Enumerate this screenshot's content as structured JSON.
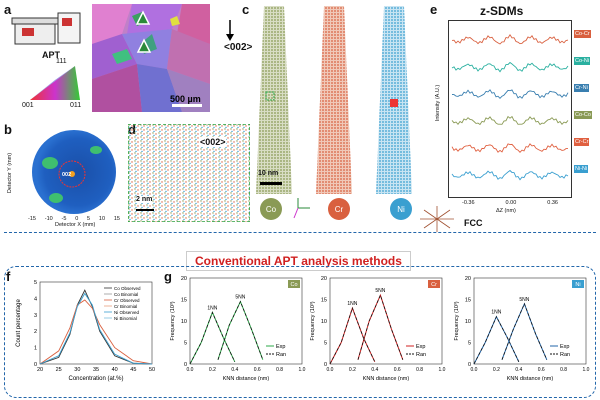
{
  "panels": {
    "a": {
      "label": "a",
      "apt_title": "APT",
      "triangle_top": "111",
      "triangle_left": "001",
      "triangle_right": "011",
      "scalebar": "500 µm"
    },
    "b": {
      "label": "b",
      "pole": "002",
      "ylabel": "Detector Y (mm)",
      "xlabel": "Detector X (mm)",
      "ticks": [
        "-15",
        "-10",
        "-5",
        "0",
        "5",
        "10",
        "15"
      ]
    },
    "c": {
      "label": "c",
      "direction": "<002>",
      "scalebar": "10 nm",
      "elements": [
        "Co",
        "Cr",
        "Ni"
      ],
      "axes": [
        "y",
        "x",
        "z"
      ]
    },
    "d": {
      "label": "d",
      "direction": "<002>",
      "scalebar": "2 nm"
    },
    "e": {
      "label": "e",
      "title": "z-SDMs",
      "ylabel": "Intensity (A.U.)",
      "xlabel": "ΔZ (nm)",
      "xticks": [
        "-0.36",
        "0.00",
        "0.36"
      ],
      "pairs": [
        "Co-Cr",
        "Co-Ni",
        "Cr-Ni",
        "Co-Co",
        "Cr-Cr",
        "Ni-Ni"
      ],
      "structure": "FCC"
    },
    "banner": "Conventional APT analysis methods",
    "f": {
      "label": "f",
      "ylabel": "Count percentage",
      "xlabel": "Concentration (at.%)",
      "yticks": [
        "0",
        "1",
        "2",
        "3",
        "4",
        "5"
      ],
      "xticks": [
        "20",
        "25",
        "30",
        "35",
        "40",
        "45",
        "50"
      ],
      "legend": [
        "Co Observed",
        "Co Binomial",
        "Cr Observed",
        "Cr Binomial",
        "Ni Observed",
        "Ni Binomial"
      ]
    },
    "g": {
      "label": "g",
      "ylabel": "Frequency (10³)",
      "xlabel": "KNN distance (nm)",
      "xticks": [
        "0.0",
        "0.2",
        "0.4",
        "0.6",
        "0.8",
        "1.0"
      ],
      "yticks": [
        "0",
        "5",
        "10",
        "15",
        "20"
      ],
      "peak1": "1NN",
      "peak5": "5NN",
      "legend_exp": "Exp",
      "legend_ran": "Ran",
      "elements": [
        "Co",
        "Cr",
        "Ni"
      ]
    }
  },
  "colors": {
    "co": "#8a9a55",
    "cr": "#d9603f",
    "ni": "#3a9fd0",
    "green_dash": "#2ea84a",
    "blue_dash": "#2266aa"
  },
  "chart_data": [
    {
      "type": "line",
      "title": "f",
      "xlabel": "Concentration (at.%)",
      "ylabel": "Count percentage",
      "xlim": [
        20,
        50
      ],
      "ylim": [
        0,
        5
      ],
      "series": [
        {
          "name": "Co Observed",
          "x": [
            20,
            25,
            28,
            30,
            32,
            34,
            36,
            40,
            45,
            50
          ],
          "y": [
            0,
            0.4,
            1.8,
            3.6,
            4.5,
            3.5,
            2.0,
            0.5,
            0.05,
            0
          ]
        },
        {
          "name": "Cr Observed",
          "x": [
            20,
            25,
            28,
            30,
            32,
            34,
            36,
            40,
            45,
            50
          ],
          "y": [
            0,
            0.8,
            2.2,
            3.6,
            3.9,
            3.4,
            2.4,
            1.0,
            0.2,
            0
          ]
        },
        {
          "name": "Ni Observed",
          "x": [
            20,
            25,
            28,
            30,
            32,
            34,
            36,
            40,
            45,
            50
          ],
          "y": [
            0,
            0.5,
            1.9,
            3.5,
            4.3,
            3.6,
            2.1,
            0.6,
            0.05,
            0
          ]
        }
      ]
    },
    {
      "type": "line",
      "title": "g-Co",
      "xlabel": "KNN distance (nm)",
      "ylabel": "Frequency (10³)",
      "xlim": [
        0,
        1
      ],
      "ylim": [
        0,
        20
      ],
      "series": [
        {
          "name": "1NN Exp",
          "x": [
            0,
            0.1,
            0.2,
            0.3,
            0.4
          ],
          "y": [
            0,
            5,
            12,
            6,
            0.5
          ]
        },
        {
          "name": "5NN Exp",
          "x": [
            0.25,
            0.35,
            0.45,
            0.55,
            0.65
          ],
          "y": [
            1,
            9,
            14.5,
            8,
            1
          ]
        }
      ]
    },
    {
      "type": "line",
      "title": "g-Cr",
      "xlabel": "KNN distance (nm)",
      "ylabel": "Frequency (10³)",
      "xlim": [
        0,
        1
      ],
      "ylim": [
        0,
        20
      ],
      "series": [
        {
          "name": "1NN Exp",
          "x": [
            0,
            0.1,
            0.2,
            0.3,
            0.4
          ],
          "y": [
            0,
            5,
            13,
            6,
            0.5
          ]
        },
        {
          "name": "5NN Exp",
          "x": [
            0.25,
            0.35,
            0.45,
            0.55,
            0.65
          ],
          "y": [
            1,
            10,
            16,
            8,
            1
          ]
        }
      ]
    },
    {
      "type": "line",
      "title": "g-Ni",
      "xlabel": "KNN distance (nm)",
      "ylabel": "Frequency (10³)",
      "xlim": [
        0,
        1
      ],
      "ylim": [
        0,
        20
      ],
      "series": [
        {
          "name": "1NN Exp",
          "x": [
            0,
            0.1,
            0.2,
            0.3,
            0.4
          ],
          "y": [
            0,
            5,
            11,
            6,
            0.5
          ]
        },
        {
          "name": "5NN Exp",
          "x": [
            0.25,
            0.35,
            0.45,
            0.55,
            0.65
          ],
          "y": [
            1,
            8,
            14,
            7,
            1
          ]
        }
      ]
    }
  ]
}
